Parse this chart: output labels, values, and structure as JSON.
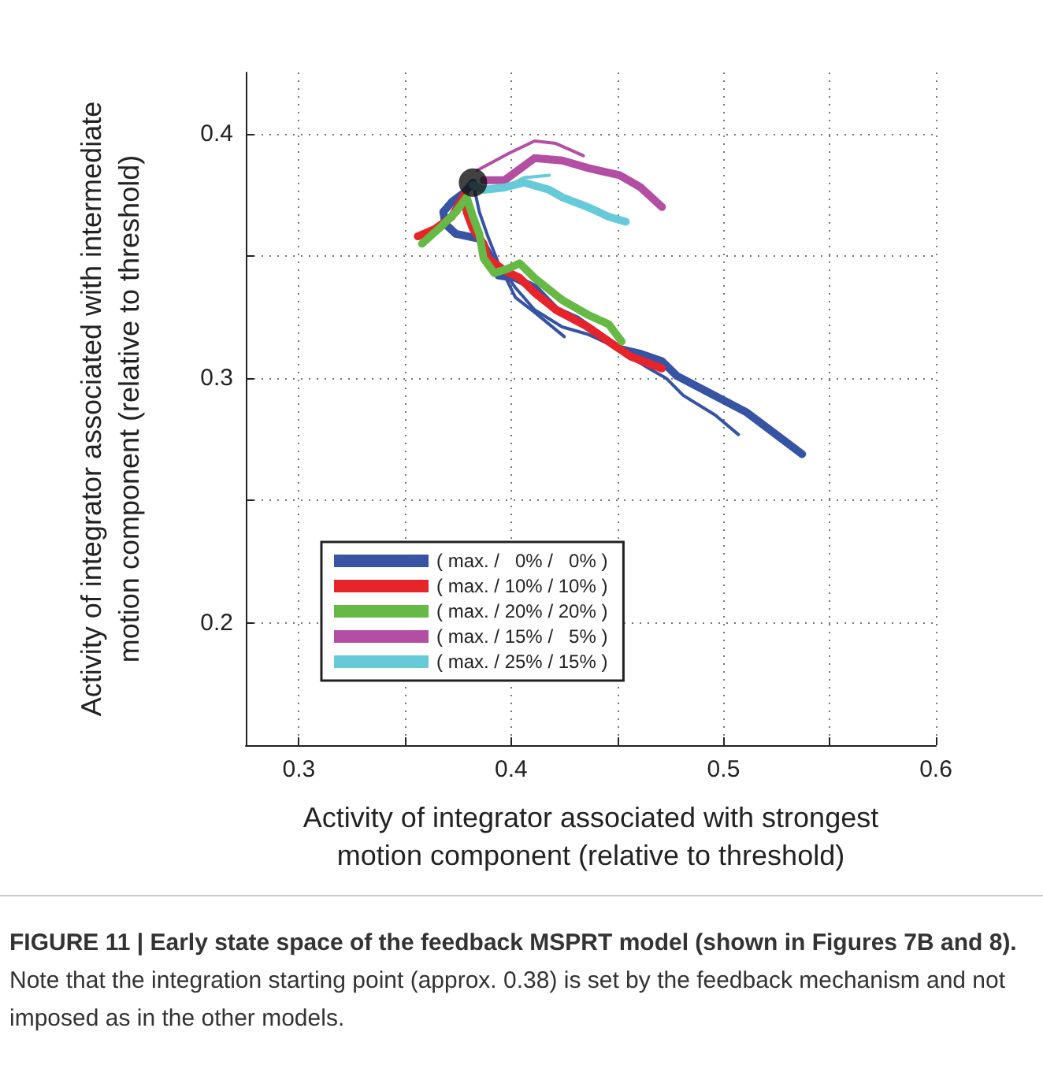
{
  "chart_data": {
    "type": "line",
    "xlabel": "Activity of integrator associated with strongest\nmotion component (relative to threshold)",
    "ylabel": "Activity of integrator associated with intermediate\nmotion component (relative to threshold)",
    "xlim": [
      0.275,
      0.6
    ],
    "ylim": [
      0.15,
      0.425
    ],
    "xticks": [
      0.3,
      {
        "value": 0.35,
        "label": null
      },
      0.4,
      {
        "value": 0.45,
        "label": null
      },
      0.5,
      {
        "value": 0.55,
        "label": null
      },
      0.6
    ],
    "yticks": [
      0.2,
      {
        "value": 0.25,
        "label": null
      },
      0.3,
      {
        "value": 0.35,
        "label": null
      },
      0.4
    ],
    "grid": true,
    "legend": "bottom left",
    "line_style": "solid",
    "marker": "none",
    "series": [
      {
        "name": "( max. /   0% /   0% )",
        "color": "#3653a4",
        "x": [
          0.382,
          0.378,
          0.372,
          0.368,
          0.369,
          0.374,
          0.385,
          0.388,
          0.392,
          0.394,
          0.402,
          0.411,
          0.421,
          0.431,
          0.441,
          0.451,
          0.461,
          0.471,
          0.478,
          0.511,
          0.537
        ],
        "values": [
          0.38,
          0.376,
          0.372,
          0.368,
          0.363,
          0.359,
          0.357,
          0.353,
          0.347,
          0.342,
          0.341,
          0.337,
          0.328,
          0.324,
          0.318,
          0.312,
          0.31,
          0.307,
          0.301,
          0.286,
          0.269
        ]
      },
      {
        "color": "#3653a4",
        "x": [
          0.382,
          0.385,
          0.389,
          0.394,
          0.402,
          0.411,
          0.424,
          0.436,
          0.446,
          0.463,
          0.473,
          0.481,
          0.496,
          0.507
        ],
        "values": [
          0.38,
          0.368,
          0.358,
          0.347,
          0.337,
          0.328,
          0.321,
          0.318,
          0.314,
          0.305,
          0.3,
          0.293,
          0.285,
          0.277
        ]
      },
      {
        "color": "#3653a4",
        "x": [
          0.394,
          0.402,
          0.411,
          0.425
        ],
        "values": [
          0.347,
          0.333,
          0.327,
          0.317
        ]
      },
      {
        "name": "( max. / 10% / 10% )",
        "color": "#e8242b",
        "x": [
          0.356,
          0.364,
          0.372,
          0.378,
          0.379,
          0.382,
          0.387,
          0.389,
          0.397,
          0.404,
          0.411,
          0.421,
          0.436,
          0.446,
          0.456,
          0.471
        ],
        "values": [
          0.358,
          0.361,
          0.366,
          0.375,
          0.368,
          0.361,
          0.355,
          0.349,
          0.344,
          0.341,
          0.335,
          0.328,
          0.321,
          0.315,
          0.309,
          0.304
        ]
      },
      {
        "name": "( max. / 20% / 20% )",
        "color": "#66b945",
        "x": [
          0.358,
          0.367,
          0.374,
          0.379,
          0.382,
          0.385,
          0.387,
          0.392,
          0.399,
          0.404,
          0.411,
          0.424,
          0.436,
          0.446,
          0.452
        ],
        "values": [
          0.355,
          0.362,
          0.368,
          0.374,
          0.366,
          0.359,
          0.349,
          0.343,
          0.345,
          0.347,
          0.341,
          0.332,
          0.326,
          0.322,
          0.315
        ]
      },
      {
        "name": "( max. / 15% /   5% )",
        "color": "#b44ea3",
        "x": [
          0.387,
          0.397,
          0.411,
          0.424,
          0.436,
          0.451,
          0.461,
          0.471
        ],
        "values": [
          0.381,
          0.381,
          0.39,
          0.389,
          0.386,
          0.383,
          0.378,
          0.37
        ]
      },
      {
        "color": "#b44ea3",
        "x": [
          0.384,
          0.399,
          0.411,
          0.421,
          0.434
        ],
        "values": [
          0.385,
          0.392,
          0.397,
          0.396,
          0.391
        ]
      },
      {
        "name": "( max. / 25% / 15% )",
        "color": "#66cad8",
        "x": [
          0.382,
          0.387,
          0.397,
          0.406,
          0.418,
          0.424,
          0.436,
          0.446,
          0.454
        ],
        "values": [
          0.379,
          0.377,
          0.378,
          0.38,
          0.377,
          0.374,
          0.37,
          0.366,
          0.364
        ]
      },
      {
        "color": "#66cad8",
        "x": [
          0.397,
          0.406,
          0.418
        ],
        "values": [
          0.378,
          0.382,
          0.383
        ]
      },
      {
        "type": "scatter",
        "marker": "circle",
        "color": "#111111",
        "x": [
          0.382
        ],
        "values": [
          0.38
        ]
      }
    ],
    "annotations": [
      "FIGURE 11 | Early state space of the feedback MSPRT model (shown in Figures 7B and 8).",
      "Note that the integration starting point (approx. 0.38) is set by the feedback mechanism and not imposed as in the other models."
    ]
  }
}
